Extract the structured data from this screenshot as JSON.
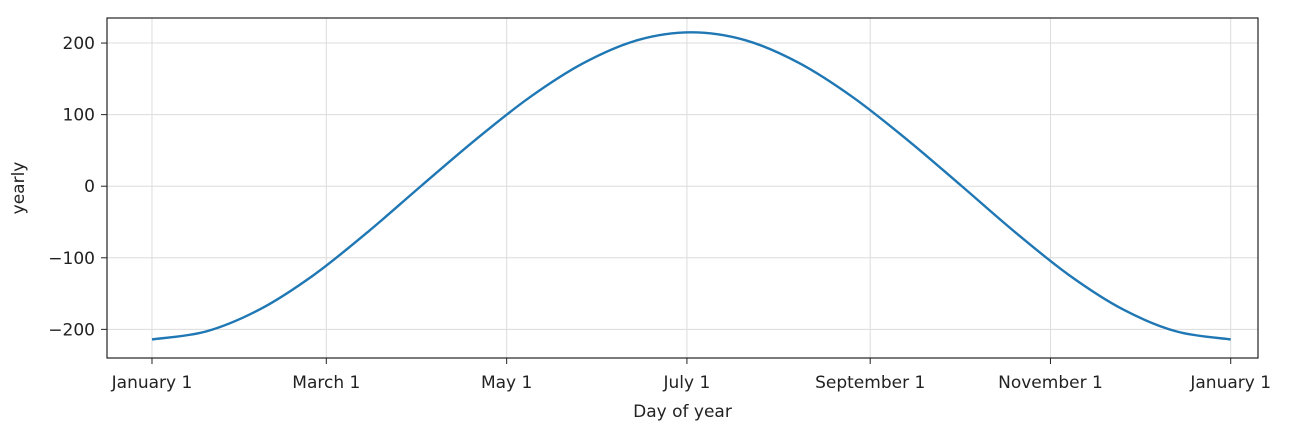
{
  "chart_data": {
    "type": "line",
    "xlabel": "Day of year",
    "ylabel": "yearly",
    "grid": true,
    "legend": "none",
    "line_color": "#1f77b4",
    "ylim": [
      -240,
      235
    ],
    "y_ticks": [
      200,
      100,
      0,
      -100,
      -200
    ],
    "y_tick_labels": [
      "200",
      "100",
      "0",
      "−100",
      "−200"
    ],
    "xlim": [
      -0.0417,
      1.0253
    ],
    "x_ticks": [
      0,
      0.1616,
      0.3288,
      0.4959,
      0.6658,
      0.8329,
      1.0
    ],
    "x_tick_labels": [
      "January 1",
      "March 1",
      "May 1",
      "July 1",
      "September 1",
      "November 1",
      "January 1"
    ],
    "series": [
      {
        "x": [
          0.0,
          0.05,
          0.1,
          0.15,
          0.2,
          0.25,
          0.3,
          0.35,
          0.4,
          0.45,
          0.5,
          0.55,
          0.6,
          0.65,
          0.7,
          0.75,
          0.8,
          0.85,
          0.9,
          0.95,
          1.0
        ],
        "values": [
          -214,
          -203,
          -172,
          -124,
          -64,
          1,
          65,
          124,
          172,
          204,
          215,
          204,
          172,
          124,
          65,
          1,
          -64,
          -124,
          -172,
          -203,
          -214
        ]
      }
    ]
  }
}
